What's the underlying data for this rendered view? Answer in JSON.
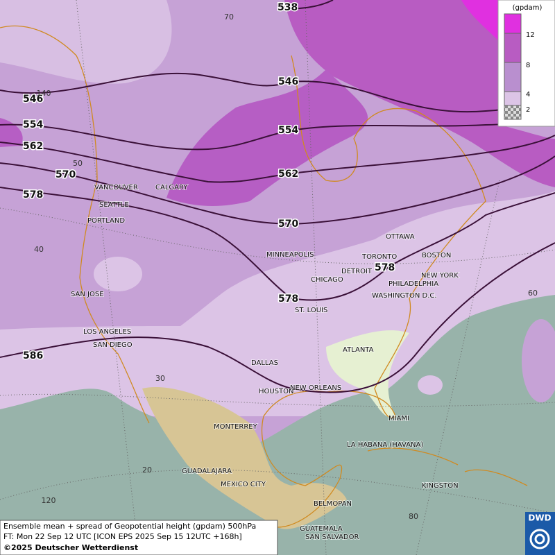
{
  "map": {
    "contour_labels": [
      "538",
      "546",
      "546",
      "554",
      "554",
      "562",
      "562",
      "570",
      "570",
      "578",
      "578",
      "578",
      "586"
    ],
    "grid_labels": [
      "70",
      "140",
      "50",
      "40",
      "30",
      "20",
      "120",
      "80",
      "60"
    ],
    "cities": [
      "VANCOUVER",
      "CALGARY",
      "SEATTLE",
      "PORTLAND",
      "OTTAWA",
      "MINNEAPOLIS",
      "TORONTO",
      "BOSTON",
      "DETROIT",
      "NEW YORK",
      "CHICAGO",
      "PHILADELPHIA",
      "SAN JOSE",
      "WASHINGTON D.C.",
      "ST. LOUIS",
      "LOS ANGELES",
      "SAN DIEGO",
      "ATLANTA",
      "DALLAS",
      "NEW ORLEANS",
      "HOUSTON",
      "MIAMI",
      "MONTERREY",
      "LA HABANA (HAVANA)",
      "GUADALAJARA",
      "MEXICO CITY",
      "KINGSTON",
      "BELMOPAN",
      "GUATEMALA",
      "SAN SALVADOR"
    ]
  },
  "legend": {
    "unit": "(gpdam)",
    "levels": [
      "12",
      "8",
      "4",
      "2"
    ]
  },
  "footer": {
    "lines": [
      "Ensemble mean + spread of Geopotential height (gpdam) 500hPa",
      "FT: Mon 22 Sep 12 UTC [ICON EPS 2025 Sep 15 12UTC +168h]",
      "©2025 Deutscher Wetterdienst"
    ]
  },
  "logo": {
    "text": "DWD"
  }
}
